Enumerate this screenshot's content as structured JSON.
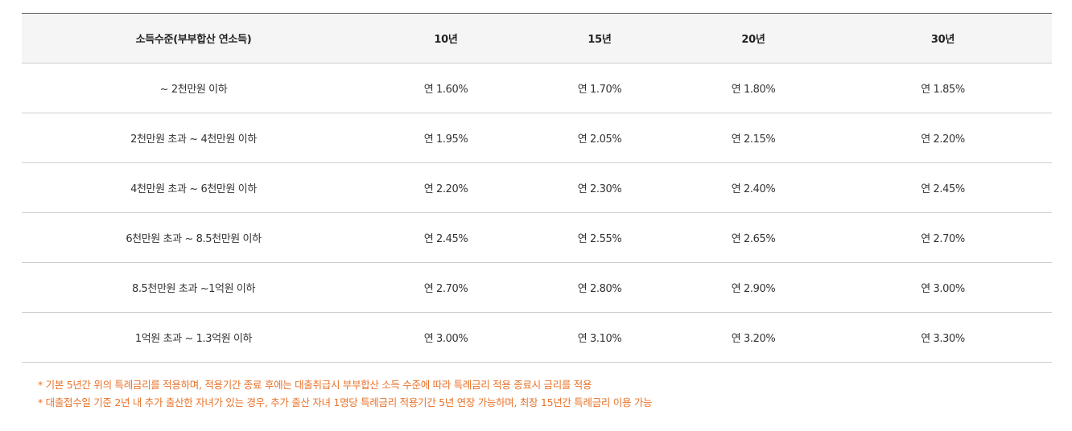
{
  "table": {
    "headers": [
      "소득수준(부부합산 연소득)",
      "10년",
      "15년",
      "20년",
      "30년"
    ],
    "rows": [
      {
        "income": "~ 2천만원 이하",
        "rates": [
          "연 1.60%",
          "연 1.70%",
          "연 1.80%",
          "연 1.85%"
        ]
      },
      {
        "income": "2천만원 초과 ~ 4천만원 이하",
        "rates": [
          "연 1.95%",
          "연 2.05%",
          "연 2.15%",
          "연 2.20%"
        ]
      },
      {
        "income": "4천만원 초과 ~ 6천만원 이하",
        "rates": [
          "연 2.20%",
          "연 2.30%",
          "연 2.40%",
          "연 2.45%"
        ]
      },
      {
        "income": "6천만원 초과 ~ 8.5천만원 이하",
        "rates": [
          "연 2.45%",
          "연 2.55%",
          "연 2.65%",
          "연 2.70%"
        ]
      },
      {
        "income": "8.5천만원 초과 ~1억원 이하",
        "rates": [
          "연 2.70%",
          "연 2.80%",
          "연 2.90%",
          "연 3.00%"
        ]
      },
      {
        "income": "1억원 초과 ~ 1.3억원 이하",
        "rates": [
          "연 3.00%",
          "연 3.10%",
          "연 3.20%",
          "연 3.30%"
        ]
      }
    ]
  },
  "notes": [
    "* 기본 5년간 위의 특례금리를 적용하며, 적용기간 종료 후에는 대출취급시 부부합산 소득 수준에 따라 특례금리 적용 종료시 금리를 적용",
    "* 대출접수일 기준 2년 내 추가 출산한 자녀가 있는 경우, 추가 출산 자녀 1명당 특례금리 적용기간 5년 연장 가능하며, 최장 15년간 특례금리 이용 가능"
  ],
  "colors": {
    "header_bg": "#f5f5f5",
    "note_text": "#e8732a",
    "row_border": "#cfcfcf"
  }
}
